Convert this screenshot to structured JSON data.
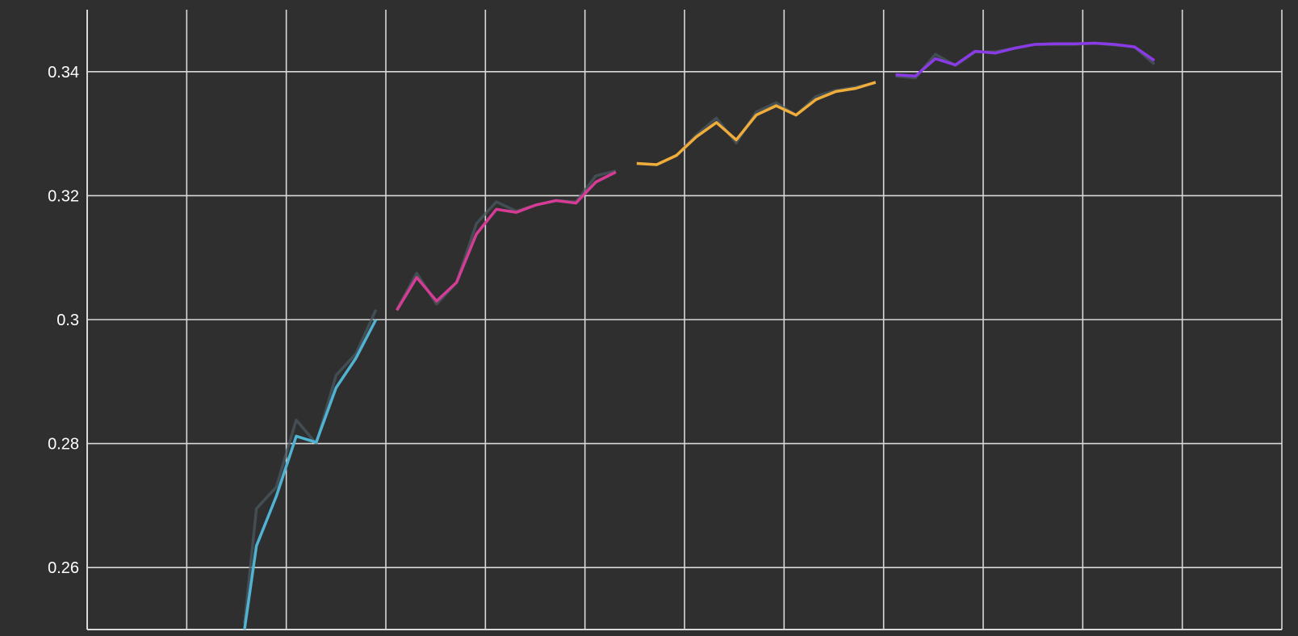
{
  "chart_data": {
    "type": "line",
    "title": "",
    "xlabel": "",
    "ylabel": "",
    "grid": true,
    "legend": "none",
    "xlim": [
      0,
      1200
    ],
    "ylim": [
      0.25,
      0.35
    ],
    "x_grid": [
      0,
      100,
      200,
      300,
      400,
      500,
      600,
      700,
      800,
      900,
      1000,
      1100,
      1200
    ],
    "y_ticks": [
      0.26,
      0.28,
      0.3,
      0.32,
      0.34
    ],
    "y_tick_labels": [
      "0.26",
      "0.28",
      "0.3",
      "0.32",
      "0.34"
    ],
    "colors": {
      "background": "#2f2f2f",
      "grid": "#d9d9d9",
      "raw_line": "#4a5a60"
    },
    "series": [
      {
        "color": "#4fb3d1",
        "x": [
          158,
          170,
          190,
          210,
          230,
          250,
          270,
          290
        ],
        "raw": [
          0.251,
          0.2695,
          0.273,
          0.2838,
          0.28,
          0.291,
          0.2945,
          0.3016
        ],
        "smoothed": [
          0.25,
          0.2635,
          0.2715,
          0.2812,
          0.2802,
          0.289,
          0.2938,
          0.3
        ]
      },
      {
        "color": "#d63c95",
        "x": [
          311,
          331,
          351,
          371,
          391,
          411,
          431,
          451,
          471,
          491,
          511,
          531
        ],
        "raw": [
          0.3016,
          0.3075,
          0.3025,
          0.306,
          0.3155,
          0.319,
          0.3175,
          0.3185,
          0.3192,
          0.319,
          0.3232,
          0.324
        ],
        "smoothed": [
          0.3015,
          0.3068,
          0.303,
          0.306,
          0.3138,
          0.3178,
          0.3173,
          0.3185,
          0.3192,
          0.3188,
          0.3222,
          0.3238
        ]
      },
      {
        "color": "#f0ad3a",
        "x": [
          552,
          572,
          592,
          612,
          632,
          652,
          672,
          692,
          712,
          732,
          752,
          772,
          792
        ],
        "raw": [
          0.3252,
          0.325,
          0.3265,
          0.3298,
          0.3325,
          0.3285,
          0.3335,
          0.335,
          0.333,
          0.336,
          0.337,
          0.3375,
          0.3382
        ],
        "smoothed": [
          0.3252,
          0.325,
          0.3265,
          0.3295,
          0.3318,
          0.329,
          0.333,
          0.3345,
          0.333,
          0.3355,
          0.3368,
          0.3373,
          0.3383
        ]
      },
      {
        "color": "#8a3be6",
        "x": [
          812,
          832,
          852,
          872,
          892,
          912,
          932,
          952,
          972,
          992,
          1012,
          1032,
          1052,
          1072
        ],
        "raw": [
          0.3393,
          0.339,
          0.3428,
          0.341,
          0.3432,
          0.3432,
          0.3438,
          0.3444,
          0.3444,
          0.3444,
          0.3446,
          0.3443,
          0.344,
          0.3412
        ],
        "smoothed": [
          0.3395,
          0.3393,
          0.3421,
          0.3411,
          0.3433,
          0.343,
          0.3438,
          0.3444,
          0.3445,
          0.3445,
          0.3446,
          0.3444,
          0.344,
          0.3418
        ]
      }
    ]
  }
}
